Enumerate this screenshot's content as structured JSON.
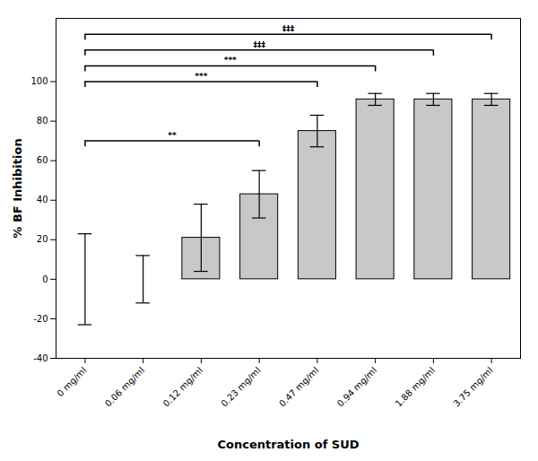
{
  "chart_data": {
    "type": "bar",
    "categories": [
      "0 mg/ml",
      "0.06 mg/ml",
      "0.12 mg/ml",
      "0.23 mg/ml",
      "0.47 mg/ml",
      "0.94 mg/ml",
      "1.88 mg/ml",
      "3.75 mg/ml"
    ],
    "values": [
      0,
      0,
      21,
      43,
      75,
      91,
      91,
      91
    ],
    "errors": [
      23,
      12,
      17,
      12,
      8,
      3,
      3,
      3
    ],
    "color": "#c8c8c8",
    "xlabel": "Concentration of SUD",
    "ylabel": "% BF Inhibition",
    "ylim": [
      -40,
      132
    ],
    "yticks": [
      -40,
      -20,
      0,
      20,
      40,
      60,
      80,
      100
    ],
    "annotations": [
      {
        "text": "**",
        "from": "0 mg/ml",
        "to": "0.23 mg/ml",
        "y": 70,
        "drop": 3
      },
      {
        "text": "***",
        "from": "0 mg/ml",
        "to": "0.47 mg/ml",
        "y": 100,
        "drop": 3
      },
      {
        "text": "***",
        "from": "0 mg/ml",
        "to": "0.94 mg/ml",
        "y": 108,
        "drop": 3
      },
      {
        "text": "‡‡‡",
        "from": "0 mg/ml",
        "to": "1.88 mg/ml",
        "y": 116,
        "drop": 3
      },
      {
        "text": "‡‡‡",
        "from": "0 mg/ml",
        "to": "3.75 mg/ml",
        "y": 124,
        "drop": 3
      }
    ]
  }
}
